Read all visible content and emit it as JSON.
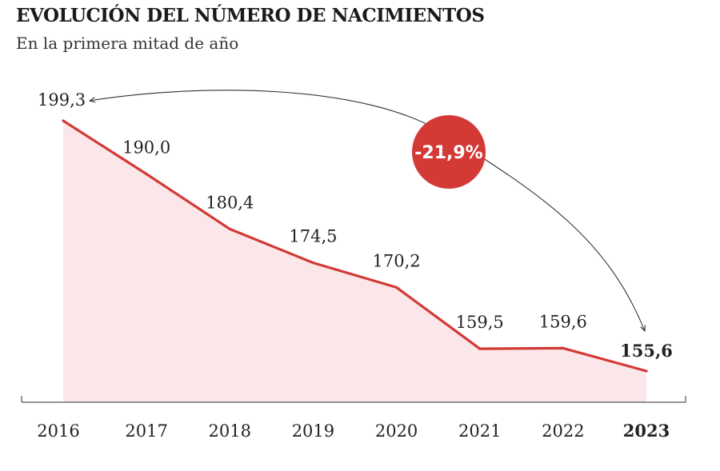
{
  "chart_data": {
    "type": "area",
    "title": "EVOLUCIÓN DEL NÚMERO DE NACIMIENTOS",
    "subtitle": "En la primera mitad de año",
    "x": [
      "2016",
      "2017",
      "2018",
      "2019",
      "2020",
      "2021",
      "2022",
      "2023"
    ],
    "values": [
      199.3,
      190.0,
      180.4,
      174.5,
      170.2,
      159.5,
      159.6,
      155.6
    ],
    "value_labels": [
      "199,3",
      "190,0",
      "180,4",
      "174,5",
      "170,2",
      "159,5",
      "159,6",
      "155,6"
    ],
    "highlight_index": 7,
    "annotation": {
      "label": "-21,9%",
      "from": "2016",
      "to": "2023"
    },
    "ylim": [
      148,
      202
    ],
    "grid": false,
    "colors": {
      "line": "#d33a36",
      "area": "#fbe6ea",
      "badge": "#d33a36",
      "axis": "#555555",
      "text": "#222222"
    }
  }
}
